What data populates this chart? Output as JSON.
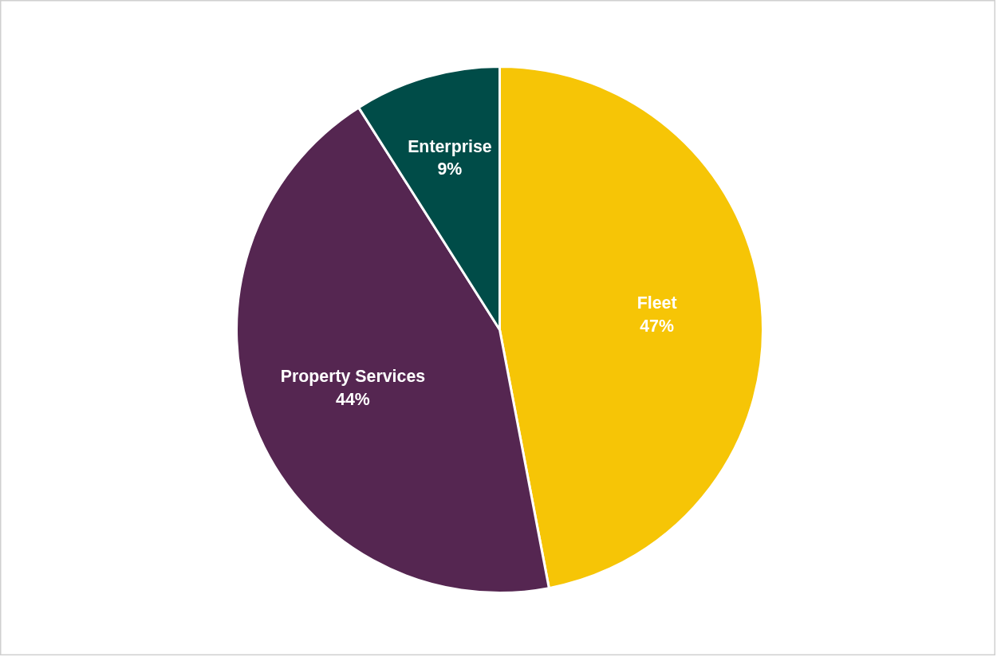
{
  "chart_data": {
    "type": "pie",
    "categories": [
      "Fleet",
      "Property Services",
      "Enterprise"
    ],
    "values": [
      47,
      44,
      9
    ],
    "colors": [
      "#f6c506",
      "#552651",
      "#004c48"
    ],
    "value_labels": [
      "47%",
      "44%",
      "9%"
    ]
  }
}
